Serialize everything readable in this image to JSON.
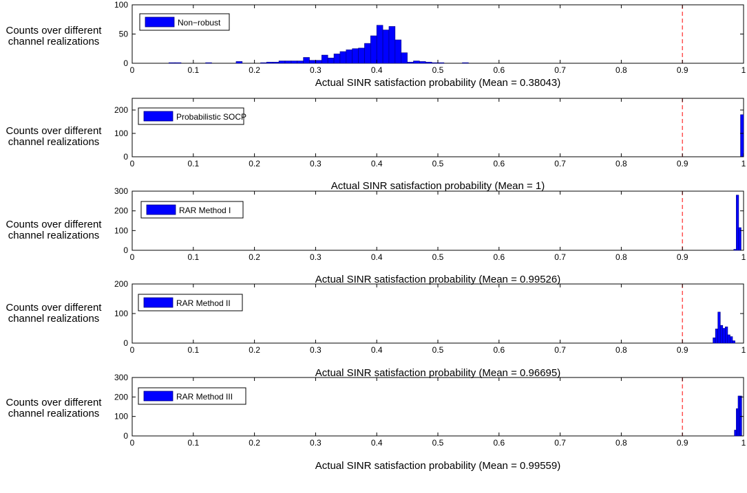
{
  "chart_data": [
    {
      "type": "bar",
      "legend": "Non−robust",
      "xlabel": "Actual SINR satisfaction probability (Mean = 0.38043)",
      "ylabel_lines": [
        "Counts over different",
        "channel realizations"
      ],
      "xlim": [
        0,
        1
      ],
      "ylim": [
        0,
        100
      ],
      "xticks": [
        "0",
        "0.1",
        "0.2",
        "0.3",
        "0.4",
        "0.5",
        "0.6",
        "0.7",
        "0.8",
        "0.9",
        "1"
      ],
      "yticks": [
        0,
        50,
        100
      ],
      "threshold": 0.9,
      "bin_width": 0.01,
      "bins": [
        [
          0.06,
          1
        ],
        [
          0.07,
          1
        ],
        [
          0.12,
          1
        ],
        [
          0.17,
          3
        ],
        [
          0.21,
          1
        ],
        [
          0.22,
          2
        ],
        [
          0.23,
          2
        ],
        [
          0.24,
          4
        ],
        [
          0.25,
          4
        ],
        [
          0.26,
          4
        ],
        [
          0.27,
          4
        ],
        [
          0.28,
          10
        ],
        [
          0.29,
          5
        ],
        [
          0.3,
          5
        ],
        [
          0.31,
          14
        ],
        [
          0.32,
          9
        ],
        [
          0.33,
          16
        ],
        [
          0.34,
          20
        ],
        [
          0.35,
          23
        ],
        [
          0.36,
          25
        ],
        [
          0.37,
          26
        ],
        [
          0.38,
          34
        ],
        [
          0.39,
          47
        ],
        [
          0.4,
          65
        ],
        [
          0.41,
          57
        ],
        [
          0.42,
          63
        ],
        [
          0.43,
          40
        ],
        [
          0.44,
          18
        ],
        [
          0.45,
          2
        ],
        [
          0.46,
          4
        ],
        [
          0.47,
          3
        ],
        [
          0.48,
          2
        ],
        [
          0.49,
          1
        ],
        [
          0.5,
          1
        ],
        [
          0.54,
          1
        ]
      ]
    },
    {
      "type": "bar",
      "legend": "Probabilistic SOCP",
      "xlabel": "Actual SINR satisfaction probability (Mean = 1)",
      "ylabel_lines": [
        "Counts over different",
        "channel realizations"
      ],
      "xlim": [
        0,
        1
      ],
      "ylim": [
        0,
        250
      ],
      "xticks": [
        "0",
        "0.1",
        "0.2",
        "0.3",
        "0.4",
        "0.5",
        "0.6",
        "0.7",
        "0.8",
        "0.9",
        "1"
      ],
      "yticks": [
        0,
        100,
        200
      ],
      "threshold": 0.9,
      "bin_width": 0.005,
      "bins": [
        [
          0.995,
          180
        ]
      ]
    },
    {
      "type": "bar",
      "legend": "RAR Method I",
      "xlabel": "Actual SINR satisfaction probability (Mean = 0.99526)",
      "ylabel_lines": [
        "Counts over different",
        "channel realizations"
      ],
      "xlim": [
        0,
        1
      ],
      "ylim": [
        0,
        300
      ],
      "xticks": [
        "0",
        "0.1",
        "0.2",
        "0.3",
        "0.4",
        "0.5",
        "0.6",
        "0.7",
        "0.8",
        "0.9",
        "1"
      ],
      "yticks": [
        0,
        100,
        200,
        300
      ],
      "threshold": 0.9,
      "bin_width": 0.004,
      "bins": [
        [
          0.984,
          5
        ],
        [
          0.988,
          280
        ],
        [
          0.992,
          115
        ]
      ]
    },
    {
      "type": "bar",
      "legend": "RAR Method II",
      "xlabel": "Actual SINR satisfaction probability (Mean = 0.96695)",
      "ylabel_lines": [
        "Counts over different",
        "channel realizations"
      ],
      "xlim": [
        0,
        1
      ],
      "ylim": [
        0,
        200
      ],
      "xticks": [
        "0",
        "0.1",
        "0.2",
        "0.3",
        "0.4",
        "0.5",
        "0.6",
        "0.7",
        "0.8",
        "0.9",
        "1"
      ],
      "yticks": [
        0,
        100,
        200
      ],
      "threshold": 0.9,
      "bin_width": 0.004,
      "bins": [
        [
          0.95,
          18
        ],
        [
          0.954,
          48
        ],
        [
          0.958,
          105
        ],
        [
          0.962,
          60
        ],
        [
          0.966,
          50
        ],
        [
          0.97,
          55
        ],
        [
          0.974,
          28
        ],
        [
          0.978,
          22
        ],
        [
          0.982,
          8
        ]
      ]
    },
    {
      "type": "bar",
      "legend": "RAR Method III",
      "xlabel": "Actual SINR satisfaction probability (Mean = 0.99559)",
      "ylabel_lines": [
        "Counts over different",
        "channel realizations"
      ],
      "xlim": [
        0,
        1
      ],
      "ylim": [
        0,
        300
      ],
      "xticks": [
        "0",
        "0.1",
        "0.2",
        "0.3",
        "0.4",
        "0.5",
        "0.6",
        "0.7",
        "0.8",
        "0.9",
        "1"
      ],
      "yticks": [
        0,
        100,
        200,
        300
      ],
      "threshold": 0.9,
      "bin_width": 0.003,
      "bins": [
        [
          0.985,
          30
        ],
        [
          0.988,
          140
        ],
        [
          0.991,
          205
        ],
        [
          0.994,
          205
        ]
      ]
    }
  ],
  "colors": {
    "bar": "#0000ff",
    "bar_edge": "#00007a",
    "threshold": "#ff2a2a",
    "axes": "#000000"
  }
}
